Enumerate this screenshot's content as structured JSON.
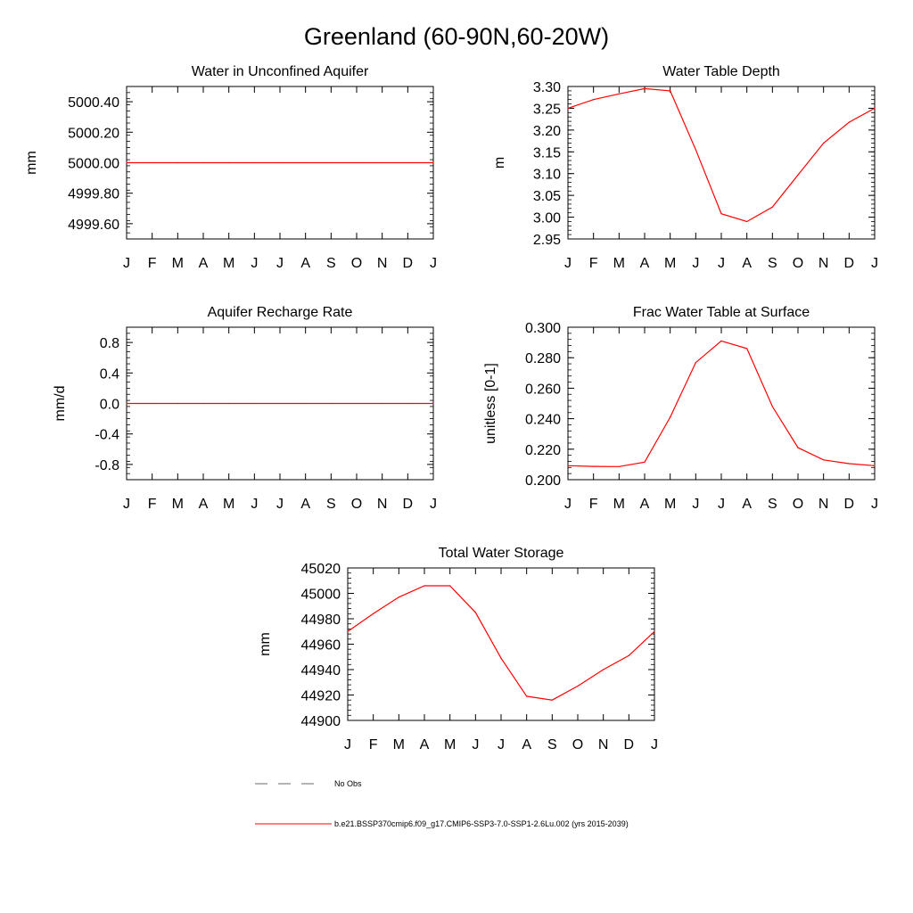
{
  "figure_title": "Greenland (60-90N,60-20W)",
  "months": [
    "J",
    "F",
    "M",
    "A",
    "M",
    "J",
    "J",
    "A",
    "S",
    "O",
    "N",
    "D",
    "J"
  ],
  "series_color": "#ff0000",
  "chart_data": [
    {
      "type": "line",
      "title": "Water in Unconfined Aquifer",
      "ylabel": "mm",
      "xlabel": "",
      "ylim": [
        4999.5,
        5000.5
      ],
      "yticks": [
        "5000.40",
        "5000.20",
        "5000.00",
        "4999.80",
        "4999.60"
      ],
      "ytick_values": [
        5000.4,
        5000.2,
        5000.0,
        4999.8,
        4999.6
      ],
      "values": [
        5000,
        5000,
        5000,
        5000,
        5000,
        5000,
        5000,
        5000,
        5000,
        5000,
        5000,
        5000,
        5000
      ]
    },
    {
      "type": "line",
      "title": "Water Table Depth",
      "ylabel": "m",
      "xlabel": "",
      "ylim": [
        2.95,
        3.3
      ],
      "yticks": [
        "3.30",
        "3.25",
        "3.20",
        "3.15",
        "3.10",
        "3.05",
        "3.00",
        "2.95"
      ],
      "ytick_values": [
        3.3,
        3.25,
        3.2,
        3.15,
        3.1,
        3.05,
        3.0,
        2.95
      ],
      "values": [
        3.25,
        3.27,
        3.283,
        3.295,
        3.29,
        3.155,
        3.008,
        2.99,
        3.023,
        3.097,
        3.17,
        3.218,
        3.25
      ]
    },
    {
      "type": "line",
      "title": "Aquifer Recharge Rate",
      "ylabel": "mm/d",
      "xlabel": "",
      "ylim": [
        -1.0,
        1.0
      ],
      "yticks": [
        "0.8",
        "0.4",
        "0.0",
        "-0.4",
        "-0.8"
      ],
      "ytick_values": [
        0.8,
        0.4,
        0.0,
        -0.4,
        -0.8
      ],
      "values": [
        0,
        0,
        0,
        0,
        0,
        0,
        0,
        0,
        0,
        0,
        0,
        0,
        0
      ]
    },
    {
      "type": "line",
      "title": "Frac Water Table at Surface",
      "ylabel": "unitless [0-1]",
      "xlabel": "",
      "ylim": [
        0.2,
        0.3
      ],
      "yticks": [
        "0.300",
        "0.280",
        "0.260",
        "0.240",
        "0.220",
        "0.200"
      ],
      "ytick_values": [
        0.3,
        0.28,
        0.26,
        0.24,
        0.22,
        0.2
      ],
      "values": [
        0.2092,
        0.2087,
        0.2086,
        0.2115,
        0.241,
        0.2768,
        0.291,
        0.286,
        0.248,
        0.221,
        0.213,
        0.2105,
        0.2092
      ]
    },
    {
      "type": "line",
      "title": "Total Water Storage",
      "ylabel": "mm",
      "xlabel": "",
      "ylim": [
        44900,
        45020
      ],
      "yticks": [
        "45020",
        "45000",
        "44980",
        "44960",
        "44940",
        "44920",
        "44900"
      ],
      "ytick_values": [
        45020,
        45000,
        44980,
        44960,
        44940,
        44920,
        44900
      ],
      "values": [
        44970,
        44984,
        44997,
        45006,
        45006,
        44985,
        44949,
        44919,
        44916,
        44927,
        44940,
        44951,
        44970
      ]
    }
  ],
  "legend": {
    "obs_label": "No Obs",
    "model_label": "b.e21.BSSP370cmip6.f09_g17.CMIP6-SSP3-7.0-SSP1-2.6Lu.002 (yrs 2015-2039)"
  }
}
